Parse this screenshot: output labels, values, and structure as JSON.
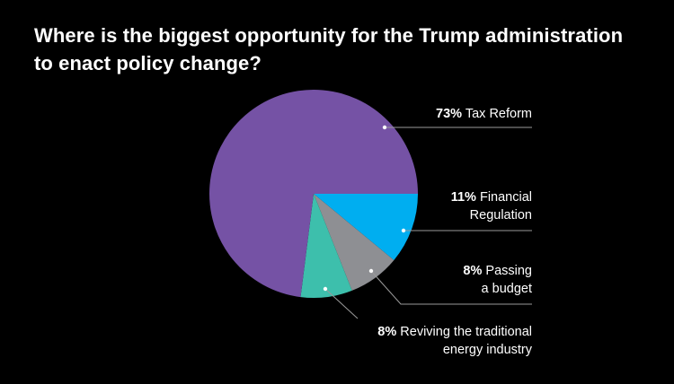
{
  "chart_data": {
    "type": "pie",
    "title": [
      "Where is the biggest opportunity for the Trump administration",
      "to enact policy change?"
    ],
    "slices": [
      {
        "label_lines": [
          "Tax Reform"
        ],
        "value": 73,
        "percent_text": "73%",
        "color": "#7552a5"
      },
      {
        "label_lines": [
          "Financial",
          "Regulation"
        ],
        "value": 11,
        "percent_text": "11%",
        "color": "#00aef0"
      },
      {
        "label_lines": [
          "Passing",
          "a budget"
        ],
        "value": 8,
        "percent_text": "8%",
        "color": "#8e8f93"
      },
      {
        "label_lines": [
          "Reviving the traditional",
          "energy industry"
        ],
        "value": 8,
        "percent_text": "8%",
        "color": "#3dbfac"
      }
    ],
    "start": "3 o'clock",
    "direction": "clockwise, small slices first",
    "leader_line_color": "#9a9a9a",
    "background": "#000000"
  }
}
